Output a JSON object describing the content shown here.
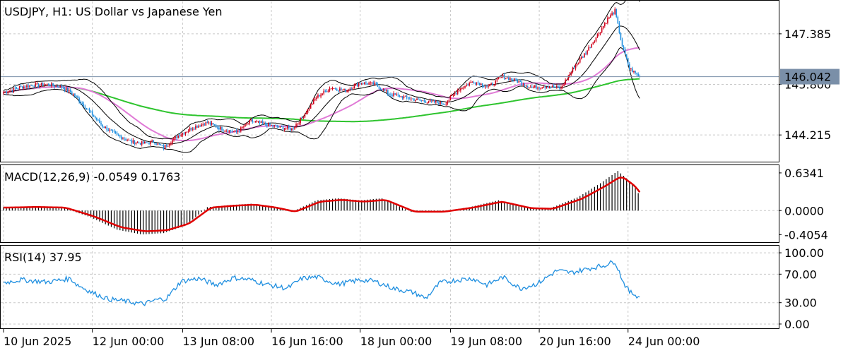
{
  "chart_data": {
    "type": "candlestick",
    "colors": {
      "bull": "#d0021b",
      "bear": "#1f8fe0",
      "bands": "#000000",
      "ma_pink": "#e07ad6",
      "ma_green": "#2ec42e",
      "macd_signal": "#e00000",
      "macd_hist": "#000000",
      "rsi": "#1f8fe0",
      "price_line": "#7a8fa8",
      "price_tag": "#7a8fa8"
    },
    "price_panel": {
      "title": "USDJPY, H1:  US Dollar vs Japanese Yen",
      "y_ticks": [
        "147.385",
        "145.800",
        "144.215"
      ],
      "y_tick_values": [
        147.385,
        145.8,
        144.215
      ],
      "ylim": [
        143.4,
        148.4
      ],
      "current_price": "146.042",
      "current_value": 146.042
    },
    "macd_panel": {
      "title": "MACD(12,26,9) -0.0549 0.1763",
      "y_ticks": [
        "0.6341",
        "0.0000",
        "-0.4054"
      ],
      "y_tick_values": [
        0.6341,
        0.0,
        -0.4054
      ],
      "ylim": [
        -0.52,
        0.74
      ]
    },
    "rsi_panel": {
      "title": "RSI(14) 37.95",
      "y_ticks": [
        "100.00",
        "70.00",
        "30.00",
        "0.00"
      ],
      "y_tick_values": [
        100,
        70,
        30,
        0
      ],
      "ylim": [
        -5,
        108
      ]
    },
    "x_labels": [
      "10 Jun 2025",
      "12 Jun 00:00",
      "13 Jun 08:00",
      "16 Jun 16:00",
      "18 Jun 00:00",
      "19 Jun 08:00",
      "20 Jun 16:00",
      "24 Jun 00:00"
    ],
    "close_anchors": [
      [
        0,
        145.55
      ],
      [
        10,
        145.7
      ],
      [
        20,
        145.78
      ],
      [
        30,
        145.8
      ],
      [
        40,
        145.72
      ],
      [
        48,
        145.5
      ],
      [
        58,
        145.0
      ],
      [
        68,
        144.5
      ],
      [
        78,
        144.2
      ],
      [
        88,
        144.0
      ],
      [
        96,
        143.95
      ],
      [
        103,
        144.0
      ],
      [
        110,
        143.82
      ],
      [
        120,
        144.2
      ],
      [
        130,
        144.45
      ],
      [
        140,
        144.6
      ],
      [
        150,
        144.4
      ],
      [
        160,
        144.3
      ],
      [
        170,
        144.65
      ],
      [
        180,
        144.55
      ],
      [
        190,
        144.45
      ],
      [
        198,
        144.4
      ],
      [
        205,
        144.75
      ],
      [
        215,
        145.4
      ],
      [
        225,
        145.7
      ],
      [
        235,
        145.6
      ],
      [
        245,
        145.85
      ],
      [
        255,
        145.8
      ],
      [
        265,
        145.5
      ],
      [
        275,
        145.4
      ],
      [
        285,
        145.3
      ],
      [
        295,
        145.25
      ],
      [
        303,
        145.2
      ],
      [
        313,
        145.65
      ],
      [
        323,
        145.9
      ],
      [
        333,
        145.72
      ],
      [
        343,
        146.05
      ],
      [
        353,
        145.9
      ],
      [
        363,
        145.7
      ],
      [
        373,
        145.75
      ],
      [
        383,
        145.68
      ],
      [
        392,
        146.35
      ],
      [
        400,
        146.8
      ],
      [
        408,
        147.35
      ],
      [
        415,
        147.85
      ],
      [
        420,
        148.1
      ],
      [
        425,
        147.0
      ],
      [
        430,
        146.3
      ],
      [
        437,
        146.04
      ]
    ],
    "macd_anchors": [
      [
        0,
        0.05
      ],
      [
        20,
        0.06
      ],
      [
        40,
        0.05
      ],
      [
        60,
        -0.1
      ],
      [
        78,
        -0.28
      ],
      [
        95,
        -0.35
      ],
      [
        110,
        -0.33
      ],
      [
        125,
        -0.22
      ],
      [
        140,
        0.05
      ],
      [
        155,
        0.08
      ],
      [
        170,
        0.1
      ],
      [
        185,
        0.05
      ],
      [
        198,
        -0.02
      ],
      [
        215,
        0.15
      ],
      [
        230,
        0.18
      ],
      [
        245,
        0.15
      ],
      [
        260,
        0.18
      ],
      [
        280,
        -0.02
      ],
      [
        300,
        -0.02
      ],
      [
        320,
        0.05
      ],
      [
        340,
        0.15
      ],
      [
        360,
        0.04
      ],
      [
        375,
        0.03
      ],
      [
        395,
        0.2
      ],
      [
        410,
        0.4
      ],
      [
        422,
        0.58
      ],
      [
        432,
        0.4
      ],
      [
        437,
        0.22
      ]
    ],
    "rsi_anchors": [
      [
        0,
        58
      ],
      [
        12,
        62
      ],
      [
        30,
        59
      ],
      [
        46,
        64
      ],
      [
        50,
        56
      ],
      [
        60,
        45
      ],
      [
        72,
        35
      ],
      [
        84,
        32
      ],
      [
        96,
        28
      ],
      [
        105,
        34
      ],
      [
        112,
        36
      ],
      [
        122,
        60
      ],
      [
        134,
        64
      ],
      [
        146,
        55
      ],
      [
        158,
        65
      ],
      [
        170,
        62
      ],
      [
        182,
        55
      ],
      [
        195,
        50
      ],
      [
        205,
        64
      ],
      [
        215,
        66
      ],
      [
        230,
        56
      ],
      [
        245,
        62
      ],
      [
        255,
        60
      ],
      [
        268,
        50
      ],
      [
        282,
        44
      ],
      [
        290,
        36
      ],
      [
        300,
        58
      ],
      [
        312,
        62
      ],
      [
        322,
        64
      ],
      [
        332,
        55
      ],
      [
        343,
        66
      ],
      [
        355,
        50
      ],
      [
        367,
        57
      ],
      [
        380,
        75
      ],
      [
        390,
        72
      ],
      [
        402,
        78
      ],
      [
        412,
        82
      ],
      [
        420,
        88
      ],
      [
        426,
        58
      ],
      [
        430,
        45
      ],
      [
        437,
        38
      ]
    ]
  }
}
